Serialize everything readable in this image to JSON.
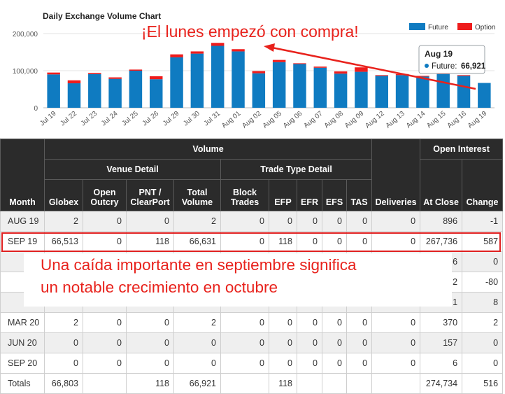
{
  "chart_data": {
    "type": "bar",
    "stacked": true,
    "title": "Daily Exchange Volume Chart",
    "categories": [
      "Jul 19",
      "Jul 22",
      "Jul 23",
      "Jul 24",
      "Jul 25",
      "Jul 26",
      "Jul 29",
      "Jul 30",
      "Jul 31",
      "Aug 01",
      "Aug 02",
      "Aug 05",
      "Aug 06",
      "Aug 07",
      "Aug 08",
      "Aug 09",
      "Aug 12",
      "Aug 13",
      "Aug 14",
      "Aug 15",
      "Aug 16",
      "Aug 19"
    ],
    "series": [
      {
        "name": "Future",
        "color": "#0f7bc1",
        "values": [
          90000,
          66000,
          91000,
          78000,
          100000,
          77000,
          136000,
          146000,
          167000,
          152000,
          93000,
          123000,
          118000,
          108000,
          92000,
          97000,
          86000,
          88000,
          84000,
          91000,
          86000,
          66921
        ]
      },
      {
        "name": "Option",
        "color": "#ee1c1c",
        "values": [
          5000,
          8000,
          3000,
          4000,
          3000,
          8000,
          8000,
          6000,
          8000,
          6000,
          6000,
          6000,
          2000,
          3000,
          6000,
          12000,
          2000,
          3000,
          2000,
          2000,
          2000,
          0
        ]
      }
    ],
    "yticks": [
      0,
      100000,
      200000
    ],
    "ytick_labels": [
      "0",
      "100,000",
      "200,000"
    ],
    "ylim": [
      0,
      200000
    ],
    "legend_position": "top-right",
    "grid": true,
    "tooltip": {
      "date": "Aug 19",
      "series_label": "Future:",
      "value": "66,921"
    }
  },
  "annotations": {
    "top_text": "¡El lunes empezó con compra!",
    "bottom_line1": "Una caída importante en septiembre significa",
    "bottom_line2": "un notable crecimiento en octubre"
  },
  "table": {
    "group_volume": "Volume",
    "group_open_interest": "Open Interest",
    "group_venue": "Venue Detail",
    "group_trade_type": "Trade Type Detail",
    "col_month": "Month",
    "col_globex": "Globex",
    "col_open_outcry": "Open Outcry",
    "col_pnt": "PNT / ClearPort",
    "col_total_volume": "Total Volume",
    "col_block_trades": "Block Trades",
    "col_efp": "EFP",
    "col_efr": "EFR",
    "col_efs": "EFS",
    "col_tas": "TAS",
    "col_deliveries": "Deliveries",
    "col_at_close": "At Close",
    "col_change": "Change",
    "rows": [
      {
        "cells": [
          "AUG 19",
          "2",
          "0",
          "0",
          "2",
          "0",
          "0",
          "0",
          "0",
          "0",
          "0",
          "896",
          "-1"
        ]
      },
      {
        "cells": [
          "SEP 19",
          "66,513",
          "0",
          "118",
          "66,631",
          "0",
          "118",
          "0",
          "0",
          "0",
          "0",
          "267,736",
          "587"
        ]
      },
      {
        "cells": [
          "",
          "",
          "",
          "",
          "",
          "",
          "",
          "",
          "",
          "",
          "",
          "6",
          "0"
        ]
      },
      {
        "cells": [
          "",
          "",
          "",
          "",
          "",
          "",
          "",
          "",
          "",
          "",
          "",
          "2",
          "-80"
        ]
      },
      {
        "cells": [
          "",
          "",
          "",
          "",
          "",
          "",
          "",
          "",
          "",
          "",
          "",
          "1",
          "8"
        ]
      },
      {
        "cells": [
          "MAR 20",
          "2",
          "0",
          "0",
          "2",
          "0",
          "0",
          "0",
          "0",
          "0",
          "0",
          "370",
          "2"
        ]
      },
      {
        "cells": [
          "JUN 20",
          "0",
          "0",
          "0",
          "0",
          "0",
          "0",
          "0",
          "0",
          "0",
          "0",
          "157",
          "0"
        ]
      },
      {
        "cells": [
          "SEP 20",
          "0",
          "0",
          "0",
          "0",
          "0",
          "0",
          "0",
          "0",
          "0",
          "0",
          "6",
          "0"
        ]
      },
      {
        "cells": [
          "Totals",
          "66,803",
          "",
          "118",
          "66,921",
          "",
          "118",
          "",
          "",
          "",
          "",
          "274,734",
          "516"
        ]
      }
    ]
  }
}
